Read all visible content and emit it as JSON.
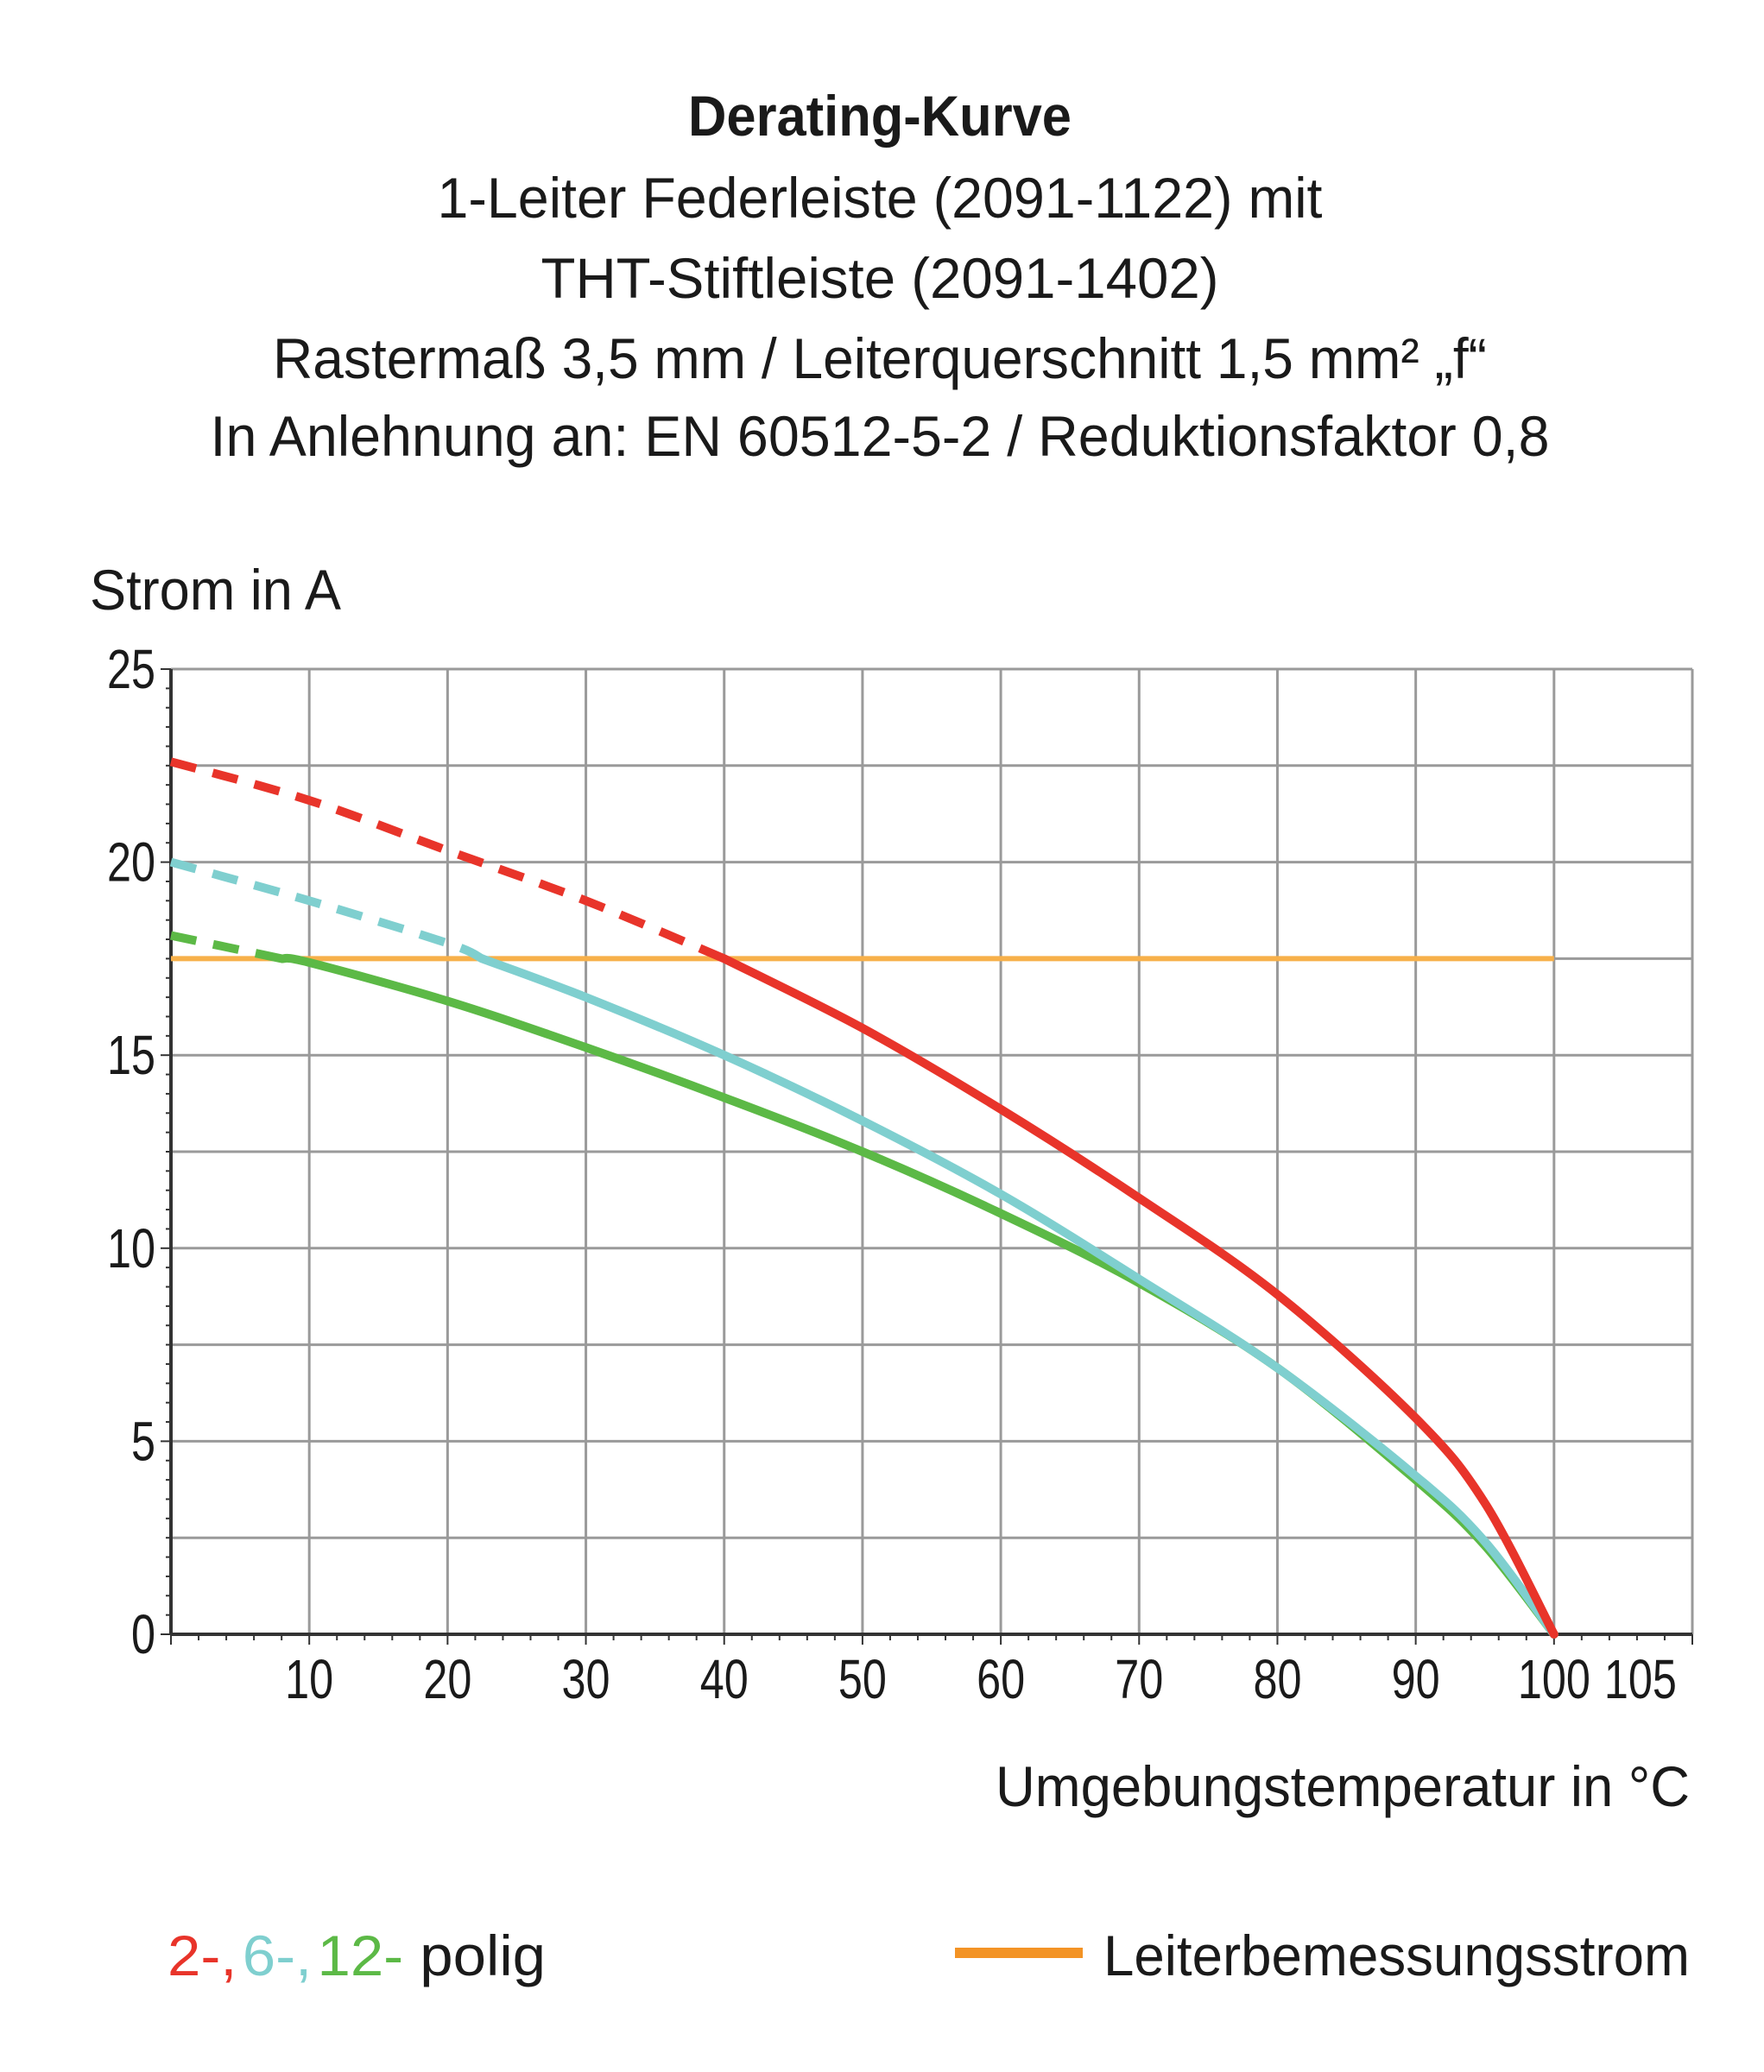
{
  "chart_data": {
    "type": "line",
    "title": "Derating-Kurve",
    "subtitle": [
      "1-Leiter Federleiste (2091-1122) mit",
      "THT-Stiftleiste (2091-1402)",
      "Rastermaß 3,5 mm / Leiterquerschnitt 1,5 mm² „f“",
      "In Anlehnung an: EN 60512-5-2 / Reduktionsfaktor 0,8"
    ],
    "ylabel": "Strom in A",
    "xlabel": "Umgebungstemperatur in °C",
    "xlim": [
      0,
      110
    ],
    "ylim": [
      0,
      25
    ],
    "xticks": [
      "10",
      "20",
      "30",
      "40",
      "50",
      "60",
      "70",
      "80",
      "90",
      "100",
      "105"
    ],
    "xtick_values": [
      10,
      20,
      30,
      40,
      50,
      60,
      70,
      80,
      90,
      100,
      105
    ],
    "yticks": [
      "0",
      "5",
      "10",
      "15",
      "20",
      "25"
    ],
    "grid": true,
    "series": [
      {
        "color": "#e8342a",
        "dashed_until": 40,
        "x": [
          0,
          10,
          20,
          30,
          40,
          50,
          60,
          70,
          80,
          90,
          95,
          100
        ],
        "y": [
          22.6,
          21.6,
          20.3,
          19.0,
          17.5,
          15.7,
          13.6,
          11.3,
          8.8,
          5.6,
          3.4,
          0
        ]
      },
      {
        "color": "#7fcfcf",
        "dashed_until": 22.5,
        "x": [
          0,
          10,
          20,
          22.5,
          30,
          40,
          50,
          60,
          70,
          80,
          90,
          95,
          100
        ],
        "y": [
          20.0,
          19.0,
          17.9,
          17.5,
          16.5,
          15.0,
          13.3,
          11.4,
          9.2,
          6.9,
          4.1,
          2.4,
          0
        ]
      },
      {
        "color": "#5cb946",
        "dashed_until": 8,
        "x": [
          0,
          8,
          10,
          20,
          30,
          40,
          50,
          60,
          70,
          80,
          90,
          95,
          100
        ],
        "y": [
          18.1,
          17.5,
          17.4,
          16.4,
          15.2,
          13.9,
          12.5,
          10.9,
          9.1,
          6.9,
          4.0,
          2.3,
          0
        ]
      },
      {
        "name": "Leiterbemessungsstrom",
        "color": "#f7b04a",
        "x": [
          0,
          100
        ],
        "y": [
          17.5,
          17.5
        ]
      }
    ],
    "legend": {
      "poles": [
        {
          "text": "2-,",
          "color": "#e8342a"
        },
        {
          "text": "6-,",
          "color": "#7fcfcf"
        },
        {
          "text": "12-",
          "color": "#5cb946"
        },
        {
          "text": " polig",
          "color": "#1a1a1a"
        }
      ],
      "rated_current_label": "Leiterbemessungsstrom",
      "rated_current_swatch": "#f39325",
      "placement": "bottom"
    }
  }
}
